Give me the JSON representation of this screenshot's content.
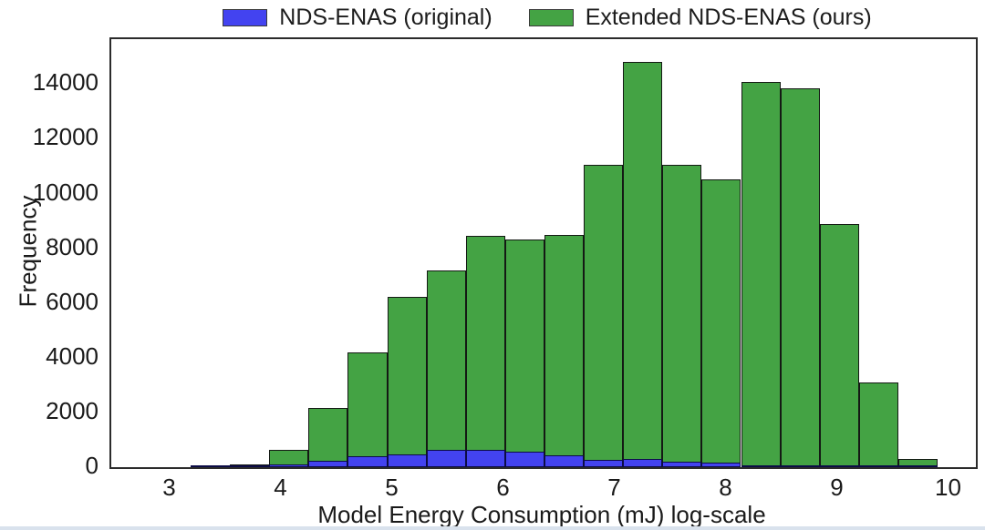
{
  "legend": {
    "items": [
      {
        "label": "NDS-ENAS (original)",
        "color": "#4343f0"
      },
      {
        "label": "Extended NDS-ENAS (ours)",
        "color": "#44a344"
      }
    ]
  },
  "axes": {
    "xlabel": "Model Energy Consumption (mJ) log-scale",
    "ylabel": "Frequency"
  },
  "chart_data": {
    "type": "bar",
    "subtype": "overlaid-histogram",
    "title": "",
    "xlabel": "Model Energy Consumption (mJ) log-scale",
    "ylabel": "Frequency",
    "grid": false,
    "legend_position": "top-center",
    "bin_start": 3.176,
    "bin_width": 0.3533,
    "bin_edges": [
      3.176,
      3.529,
      3.883,
      4.236,
      4.589,
      4.943,
      5.296,
      5.649,
      6.003,
      6.356,
      6.709,
      7.063,
      7.416,
      7.769,
      8.123,
      8.476,
      8.829,
      9.183,
      9.536,
      9.889
    ],
    "xlim": [
      2.463,
      10.234
    ],
    "ylim": [
      0,
      15640
    ],
    "xticks": [
      3,
      4,
      5,
      6,
      7,
      8,
      9,
      10
    ],
    "yticks": [
      0,
      2000,
      4000,
      6000,
      8000,
      10000,
      12000,
      14000
    ],
    "series": [
      {
        "name": "Extended NDS-ENAS (ours)",
        "color": "#44a344",
        "edge_color": "#141914",
        "values": [
          40,
          110,
          640,
          2180,
          4200,
          6220,
          7200,
          8450,
          8330,
          8500,
          11050,
          14820,
          11050,
          10530,
          14080,
          13860,
          8870,
          3080,
          300
        ]
      },
      {
        "name": "NDS-ENAS (original)",
        "color": "#4343f0",
        "edge_color": "#0c0c46",
        "values": [
          10,
          55,
          90,
          240,
          390,
          470,
          625,
          640,
          570,
          440,
          260,
          310,
          195,
          170,
          70,
          55,
          30,
          10,
          5
        ]
      }
    ]
  }
}
